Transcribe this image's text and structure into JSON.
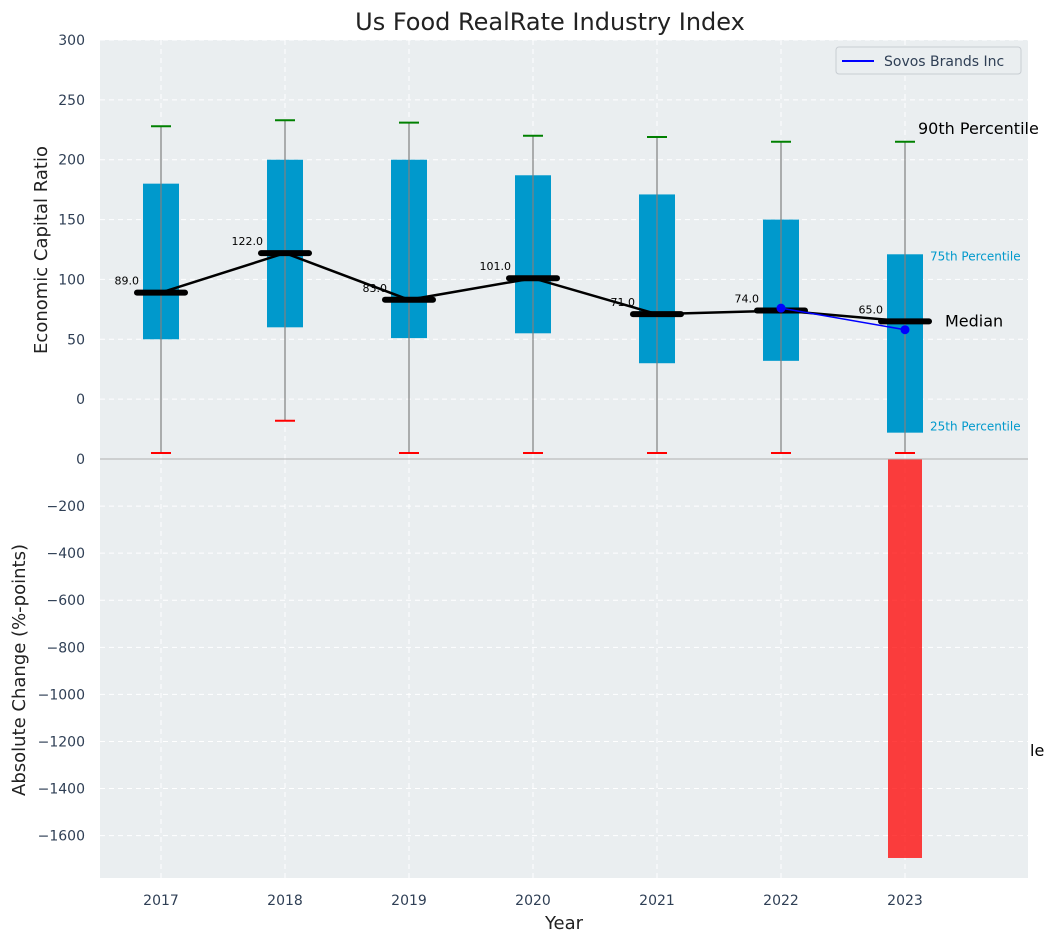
{
  "chart_data": [
    {
      "type": "box",
      "title": "Us Food RealRate Industry Index",
      "ylabel": "Economic Capital Ratio",
      "ylim": [
        -50,
        300
      ],
      "y_ticks": [
        0,
        50,
        100,
        150,
        200,
        250,
        300
      ],
      "y_tick_labels": [
        "0",
        "50",
        "100",
        "150",
        "200",
        "250",
        "300"
      ],
      "grid": true,
      "categories": [
        "2017",
        "2018",
        "2019",
        "2020",
        "2021",
        "2022",
        "2023"
      ],
      "boxes": [
        {
          "year": "2017",
          "p25": 50,
          "p75": 180,
          "p90": 228,
          "p10": -45,
          "median": 89
        },
        {
          "year": "2018",
          "p25": 60,
          "p75": 200,
          "p90": 233,
          "p10": -18,
          "median": 122
        },
        {
          "year": "2019",
          "p25": 51,
          "p75": 200,
          "p90": 231,
          "p10": -45,
          "median": 83
        },
        {
          "year": "2020",
          "p25": 55,
          "p75": 187,
          "p90": 220,
          "p10": -45,
          "median": 101
        },
        {
          "year": "2021",
          "p25": 30,
          "p75": 171,
          "p90": 219,
          "p10": -45,
          "median": 71
        },
        {
          "year": "2022",
          "p25": 32,
          "p75": 150,
          "p90": 215,
          "p10": -45,
          "median": 74
        },
        {
          "year": "2023",
          "p25": -28,
          "p75": 121,
          "p90": 215,
          "p10": -45,
          "median": 65
        }
      ],
      "whisker_color_top": "#008000",
      "whisker_color_bottom": "#ff0000",
      "box_color": "#0099cc",
      "median_labels": [
        "89.0",
        "122.0",
        "83.0",
        "101.0",
        "71.0",
        "74.0",
        "65.0"
      ],
      "median_line": [
        89,
        122,
        83,
        101,
        71,
        74,
        65
      ],
      "company_series": {
        "name": "Sovos Brands Inc",
        "color": "#0000ff",
        "points": [
          {
            "x": "2022",
            "y": 76
          },
          {
            "x": "2023",
            "y": 58
          }
        ]
      },
      "legend": {
        "position": "top-right",
        "entries": [
          "Sovos Brands Inc"
        ]
      },
      "annotations": {
        "p90": "90th Percentile",
        "p75": "75th Percentile",
        "median": "Median",
        "p25": "25th Percentile"
      }
    },
    {
      "type": "bar",
      "xlabel": "Year",
      "ylabel": "Absolute Change (%-points)",
      "ylim": [
        -1780,
        0
      ],
      "y_ticks": [
        0,
        -200,
        -400,
        -600,
        -800,
        -1000,
        -1200,
        -1400,
        -1600
      ],
      "y_tick_labels": [
        "0",
        "−200",
        "−400",
        "−600",
        "−800",
        "−1000",
        "−1200",
        "−1400",
        "−1600"
      ],
      "grid": true,
      "categories": [
        "2017",
        "2018",
        "2019",
        "2020",
        "2021",
        "2022",
        "2023"
      ],
      "values": [
        0,
        0,
        0,
        0,
        0,
        0,
        -1695
      ],
      "bar_color": "#ff0000",
      "clipped_annotation": "le"
    }
  ]
}
